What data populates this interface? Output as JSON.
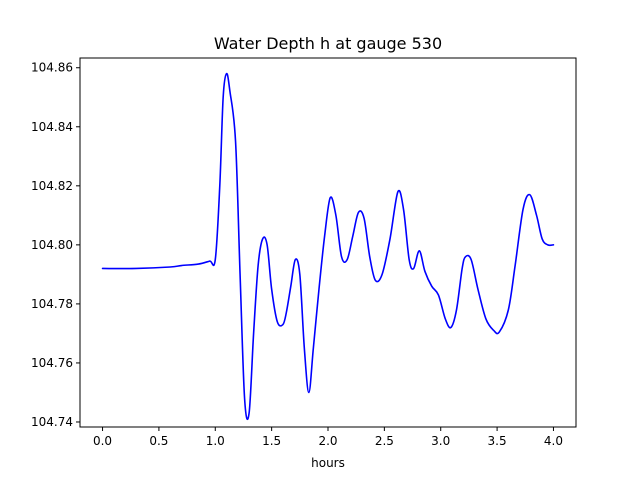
{
  "chart_data": {
    "type": "line",
    "title": "Water Depth h at gauge 530",
    "xlabel": "hours",
    "ylabel": "",
    "xlim": [
      -0.2,
      4.2
    ],
    "ylim": [
      104.7383,
      104.8633
    ],
    "xticks": [
      0.0,
      0.5,
      1.0,
      1.5,
      2.0,
      2.5,
      3.0,
      3.5,
      4.0
    ],
    "xtick_labels": [
      "0.0",
      "0.5",
      "1.0",
      "1.5",
      "2.0",
      "2.5",
      "3.0",
      "3.5",
      "4.0"
    ],
    "yticks": [
      104.74,
      104.76,
      104.78,
      104.8,
      104.82,
      104.84,
      104.86
    ],
    "ytick_labels": [
      "104.74",
      "104.76",
      "104.78",
      "104.80",
      "104.82",
      "104.84",
      "104.86"
    ],
    "grid": false,
    "series": [
      {
        "color": "#0000ff",
        "x": [
          0.0,
          0.3,
          0.6,
          0.7,
          0.85,
          0.95,
          1.0,
          1.04,
          1.07,
          1.1,
          1.13,
          1.18,
          1.22,
          1.26,
          1.3,
          1.34,
          1.38,
          1.42,
          1.46,
          1.5,
          1.55,
          1.6,
          1.63,
          1.67,
          1.71,
          1.75,
          1.79,
          1.83,
          1.87,
          1.92,
          1.97,
          2.02,
          2.07,
          2.12,
          2.17,
          2.22,
          2.27,
          2.32,
          2.37,
          2.42,
          2.48,
          2.55,
          2.62,
          2.67,
          2.72,
          2.76,
          2.81,
          2.86,
          2.92,
          2.98,
          3.04,
          3.09,
          3.14,
          3.19,
          3.22,
          3.27,
          3.33,
          3.4,
          3.47,
          3.52,
          3.6,
          3.66,
          3.73,
          3.79,
          3.85,
          3.9,
          3.95,
          4.0
        ],
        "y": [
          104.792,
          104.792,
          104.7925,
          104.793,
          104.7935,
          104.7945,
          104.795,
          104.82,
          104.85,
          104.858,
          104.852,
          104.835,
          104.79,
          104.748,
          104.743,
          104.77,
          104.793,
          104.802,
          104.8,
          104.785,
          104.774,
          104.773,
          104.777,
          104.786,
          104.795,
          104.79,
          104.765,
          104.75,
          104.765,
          104.785,
          104.803,
          104.816,
          104.81,
          104.796,
          104.795,
          104.803,
          104.811,
          104.809,
          104.796,
          104.788,
          104.79,
          104.802,
          104.818,
          104.812,
          104.795,
          104.792,
          104.798,
          104.791,
          104.786,
          104.783,
          104.775,
          104.772,
          104.778,
          104.792,
          104.796,
          104.795,
          104.785,
          104.775,
          104.771,
          104.7705,
          104.778,
          104.793,
          104.812,
          104.817,
          104.81,
          104.802,
          104.8,
          104.8
        ]
      }
    ]
  }
}
